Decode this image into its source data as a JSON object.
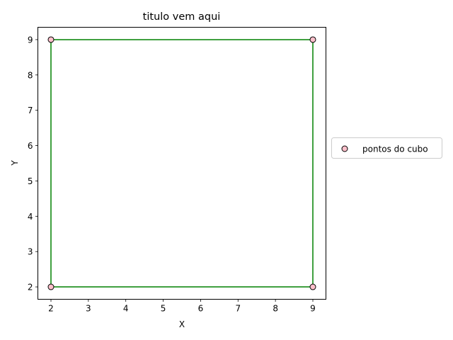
{
  "chart_data": {
    "type": "scatter",
    "title": "titulo vem aqui",
    "xlabel": "X",
    "ylabel": "Y",
    "xlim": [
      1.65,
      9.35
    ],
    "ylim": [
      1.65,
      9.35
    ],
    "xticks": [
      2,
      3,
      4,
      5,
      6,
      7,
      8,
      9
    ],
    "yticks": [
      2,
      3,
      4,
      5,
      6,
      7,
      8,
      9
    ],
    "grid": false,
    "legend_position": "center-right outside",
    "series": [
      {
        "name": "pontos do cubo",
        "kind": "scatter",
        "x": [
          2,
          9,
          2,
          9
        ],
        "y": [
          2,
          2,
          9,
          9
        ],
        "marker_face_color": "#ffc0cb",
        "marker_edge_color": "#000000"
      },
      {
        "kind": "line",
        "color": "#008000",
        "segments": [
          [
            [
              2,
              2
            ],
            [
              9,
              2
            ]
          ],
          [
            [
              9,
              2
            ],
            [
              9,
              9
            ]
          ],
          [
            [
              9,
              9
            ],
            [
              2,
              9
            ]
          ],
          [
            [
              2,
              9
            ],
            [
              2,
              2
            ]
          ]
        ]
      }
    ]
  }
}
